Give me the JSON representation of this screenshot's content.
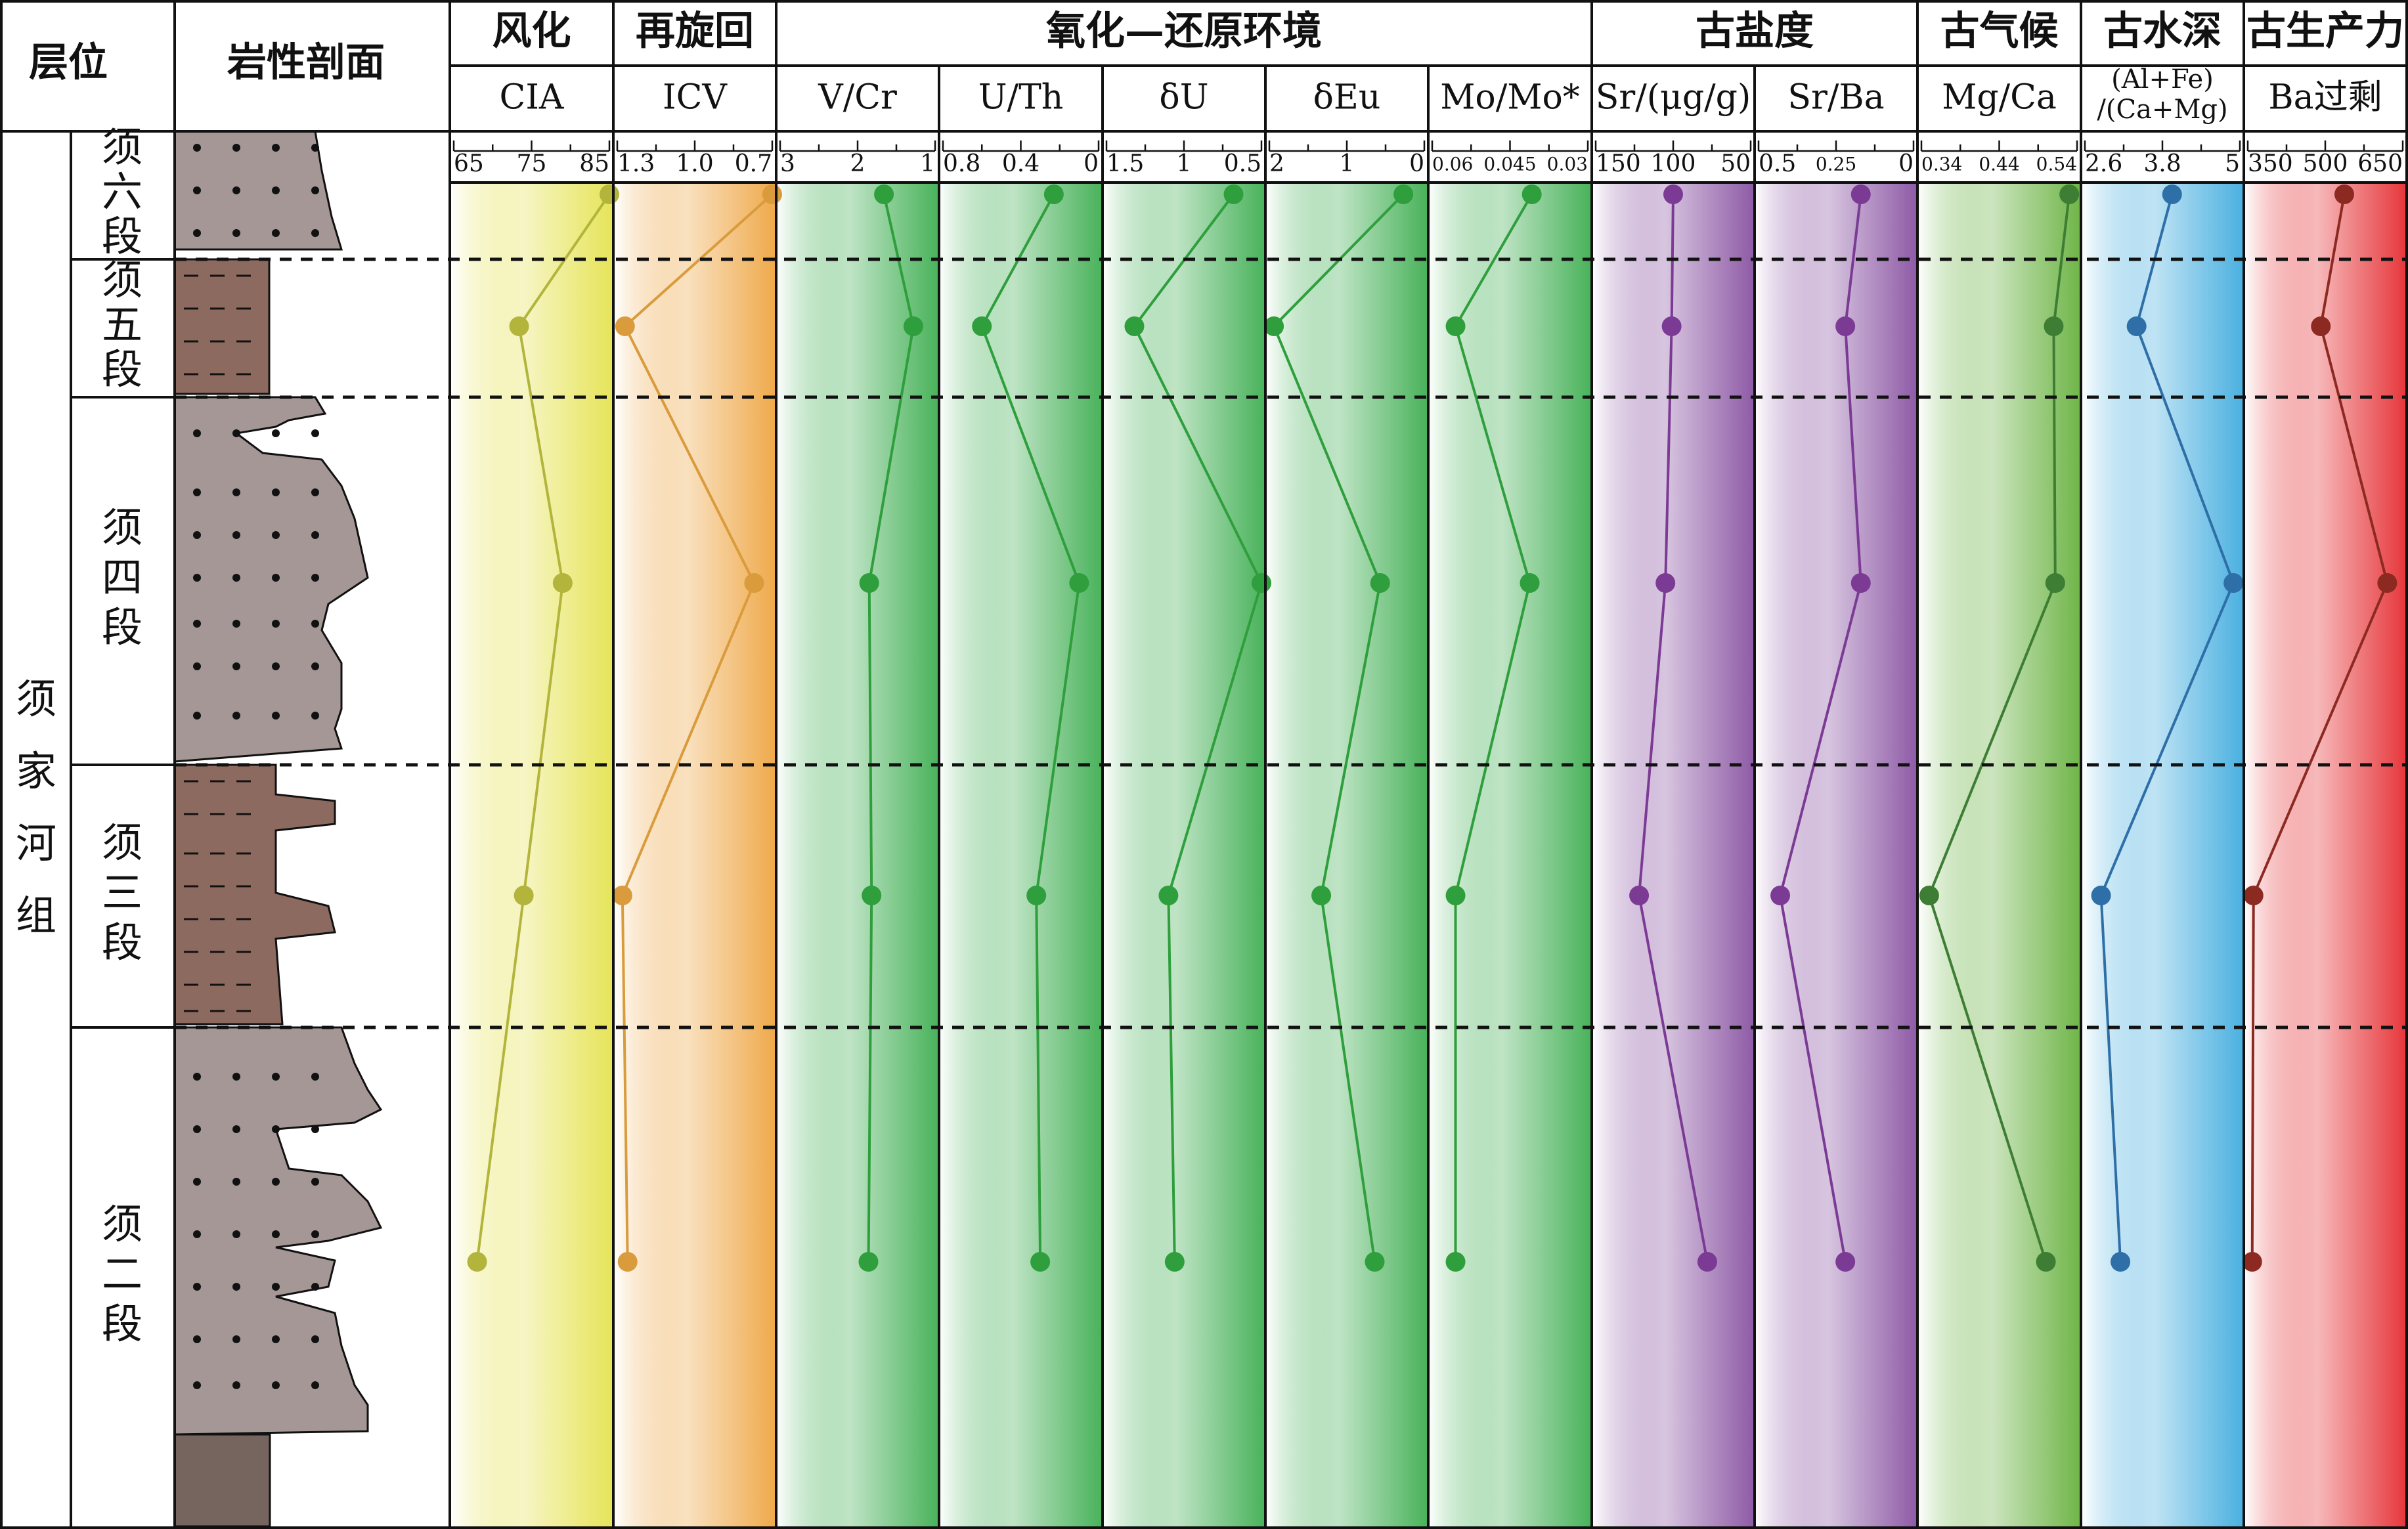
{
  "header": {
    "layer": "层位",
    "lithology": "岩性剖面",
    "formation": "须家河组",
    "groups": [
      {
        "label": "风化",
        "cols": [
          0
        ]
      },
      {
        "label": "再旋回",
        "cols": [
          1
        ]
      },
      {
        "label": "氧化—还原环境",
        "cols": [
          2,
          3,
          4,
          5,
          6
        ]
      },
      {
        "label": "古盐度",
        "cols": [
          7,
          8
        ]
      },
      {
        "label": "古气候",
        "cols": [
          9
        ]
      },
      {
        "label": "古水深",
        "cols": [
          10
        ]
      },
      {
        "label": "古生产力",
        "cols": [
          11
        ]
      }
    ]
  },
  "members": [
    {
      "label": "须六段",
      "chars": [
        "须",
        "六",
        "段"
      ]
    },
    {
      "label": "须五段",
      "chars": [
        "须",
        "五",
        "段"
      ]
    },
    {
      "label": "须四段",
      "chars": [
        "须",
        "四",
        "段"
      ]
    },
    {
      "label": "须三段",
      "chars": [
        "须",
        "三",
        "段"
      ]
    },
    {
      "label": "须二段",
      "chars": [
        "须",
        "二",
        "段"
      ]
    }
  ],
  "chart_data": {
    "type": "line",
    "orientation": "vertical-profile",
    "y_categories": [
      "须六段",
      "须五段",
      "须四段",
      "须三段",
      "须二段"
    ],
    "series": [
      {
        "name": "CIA",
        "ticks": [
          "65",
          "75",
          "85"
        ],
        "xlim": [
          65,
          85
        ],
        "values": [
          85,
          73.4,
          79,
          74,
          68
        ],
        "color": "#b3b43c",
        "bg": "#e6e458"
      },
      {
        "name": "ICV",
        "ticks": [
          "1.3",
          "1.0",
          "0.7"
        ],
        "xlim": [
          1.3,
          0.7
        ],
        "values": [
          0.7,
          1.27,
          0.77,
          1.28,
          1.26
        ],
        "color": "#d99b3c",
        "bg": "#efa94a"
      },
      {
        "name": "V/Cr",
        "ticks": [
          "3",
          "2",
          "1"
        ],
        "xlim": [
          3,
          1
        ],
        "values": [
          1.66,
          1.28,
          1.85,
          1.82,
          1.86
        ],
        "color": "#2f9e3c",
        "bg": "#48b25a"
      },
      {
        "name": "U/Th",
        "ticks": [
          "0.8",
          "0.4",
          "0"
        ],
        "xlim": [
          0.8,
          0
        ],
        "values": [
          0.23,
          0.6,
          0.1,
          0.32,
          0.3
        ],
        "color": "#2f9e3c",
        "bg": "#48b25a"
      },
      {
        "name": "δU",
        "ticks": [
          "1.5",
          "1",
          "0.5"
        ],
        "xlim": [
          1.5,
          0.5
        ],
        "values": [
          0.68,
          1.32,
          0.5,
          1.1,
          1.06
        ],
        "color": "#2f9e3c",
        "bg": "#48b25a"
      },
      {
        "name": "δEu",
        "ticks": [
          "2",
          "1",
          "0"
        ],
        "xlim": [
          2,
          0
        ],
        "values": [
          0.27,
          1.94,
          0.57,
          1.33,
          0.64
        ],
        "color": "#2f9e3c",
        "bg": "#48b25a"
      },
      {
        "name": "Mo/Mo*",
        "ticks": [
          "0.06",
          "0.045",
          "0.03"
        ],
        "xlim": [
          0.06,
          0.03
        ],
        "values": [
          0.0408,
          0.0555,
          0.0412,
          0.0555,
          0.0555
        ],
        "color": "#2f9e3c",
        "bg": "#48b25a"
      },
      {
        "name": "Sr/(μg/g)",
        "ticks": [
          "150",
          "100",
          "50"
        ],
        "xlim": [
          150,
          50
        ],
        "values": [
          100,
          101,
          105,
          122,
          78
        ],
        "color": "#7b3b94",
        "bg": "#8e5aa6"
      },
      {
        "name": "Sr/Ba",
        "ticks": [
          "0.5",
          "0.25",
          "0"
        ],
        "xlim": [
          0.5,
          0
        ],
        "values": [
          0.17,
          0.22,
          0.17,
          0.43,
          0.22
        ],
        "color": "#7b3b94",
        "bg": "#8e5aa6"
      },
      {
        "name": "Mg/Ca",
        "ticks": [
          "0.34",
          "0.44",
          "0.54"
        ],
        "xlim": [
          0.34,
          0.54
        ],
        "values": [
          0.53,
          0.51,
          0.512,
          0.35,
          0.5
        ],
        "color": "#3e7d34",
        "bg": "#6fb548"
      },
      {
        "name": "(Al+Fe)/(Ca+Mg)",
        "ticks": [
          "2.6",
          "3.8",
          "5"
        ],
        "xlim": [
          2.6,
          5
        ],
        "values": [
          3.95,
          3.4,
          4.9,
          2.85,
          3.15
        ],
        "color": "#2e6fa8",
        "bg": "#4ab0e0"
      },
      {
        "name": "Ba过剩",
        "ticks": [
          "350",
          "500",
          "650"
        ],
        "xlim": [
          350,
          700
        ],
        "values": [
          568,
          515,
          665,
          363,
          360
        ],
        "color": "#8c2a22",
        "bg": "#e6363a"
      }
    ]
  }
}
